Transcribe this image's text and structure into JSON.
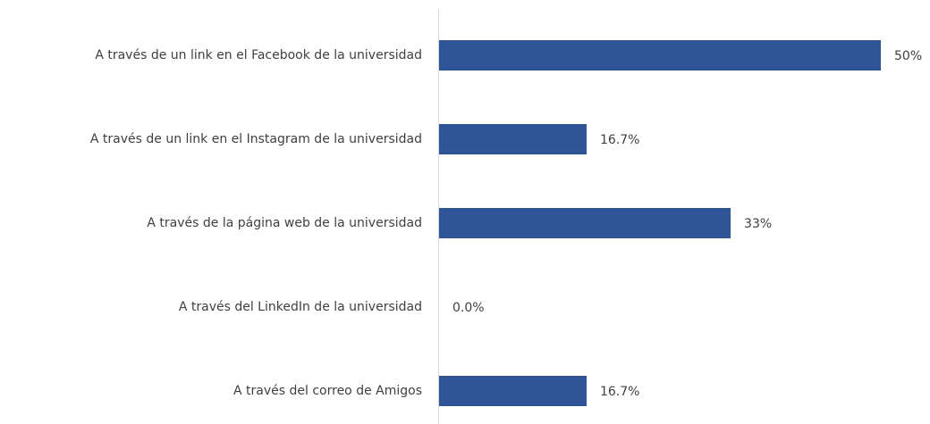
{
  "chart_data": {
    "type": "bar",
    "orientation": "horizontal",
    "categories": [
      "A través de un link en el Facebook de la universidad",
      "A través de un link en el Instagram de la universidad",
      "A través de la página web de la universidad",
      "A través del LinkedIn de la universidad",
      "A través del correo de Amigos"
    ],
    "values": [
      50,
      16.7,
      33,
      0,
      16.7
    ],
    "value_labels": [
      "50%",
      "16.7%",
      "33%",
      "0.0%",
      "16.7%"
    ],
    "color": "#2f5597",
    "xlim": [
      0,
      50
    ]
  }
}
